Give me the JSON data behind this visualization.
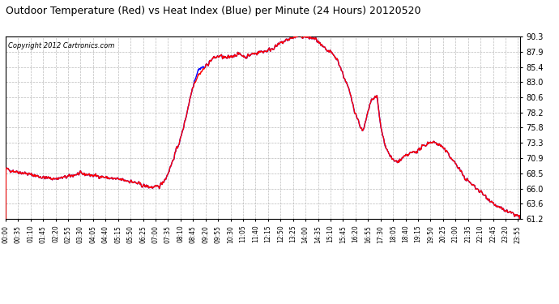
{
  "title": "Outdoor Temperature (Red) vs Heat Index (Blue) per Minute (24 Hours) 20120520",
  "copyright": "Copyright 2012 Cartronics.com",
  "background_color": "#ffffff",
  "plot_background": "#ffffff",
  "grid_color": "#aaaaaa",
  "line_color_red": "#ff0000",
  "line_color_blue": "#0000ff",
  "ylim": [
    61.2,
    90.3
  ],
  "yticks": [
    61.2,
    63.6,
    66.0,
    68.5,
    70.9,
    73.3,
    75.8,
    78.2,
    80.6,
    83.0,
    85.4,
    87.9,
    90.3
  ],
  "tick_hours": [
    0.0,
    0.5833,
    1.1667,
    1.75,
    2.3333,
    2.9167,
    3.5,
    4.0833,
    4.6667,
    5.25,
    5.8333,
    6.4167,
    7.0,
    7.5833,
    8.1667,
    8.75,
    9.3333,
    9.9167,
    10.5,
    11.0833,
    11.6667,
    12.25,
    12.8333,
    13.4167,
    14.0,
    14.5833,
    15.1667,
    15.75,
    16.3333,
    16.9167,
    17.5,
    18.0833,
    18.6667,
    19.25,
    19.8333,
    20.4167,
    21.0,
    21.5833,
    22.1667,
    22.75,
    23.3333,
    23.9167
  ],
  "tick_labels": [
    "00:00",
    "00:35",
    "01:10",
    "01:45",
    "02:20",
    "02:55",
    "03:30",
    "04:05",
    "04:40",
    "05:15",
    "05:50",
    "06:25",
    "07:00",
    "07:35",
    "08:10",
    "08:45",
    "09:20",
    "09:55",
    "10:30",
    "11:05",
    "11:40",
    "12:15",
    "12:50",
    "13:25",
    "14:00",
    "14:35",
    "15:10",
    "15:45",
    "16:20",
    "16:55",
    "17:30",
    "18:05",
    "18:40",
    "19:15",
    "19:50",
    "20:25",
    "21:00",
    "21:35",
    "22:10",
    "22:45",
    "23:20",
    "23:55"
  ]
}
